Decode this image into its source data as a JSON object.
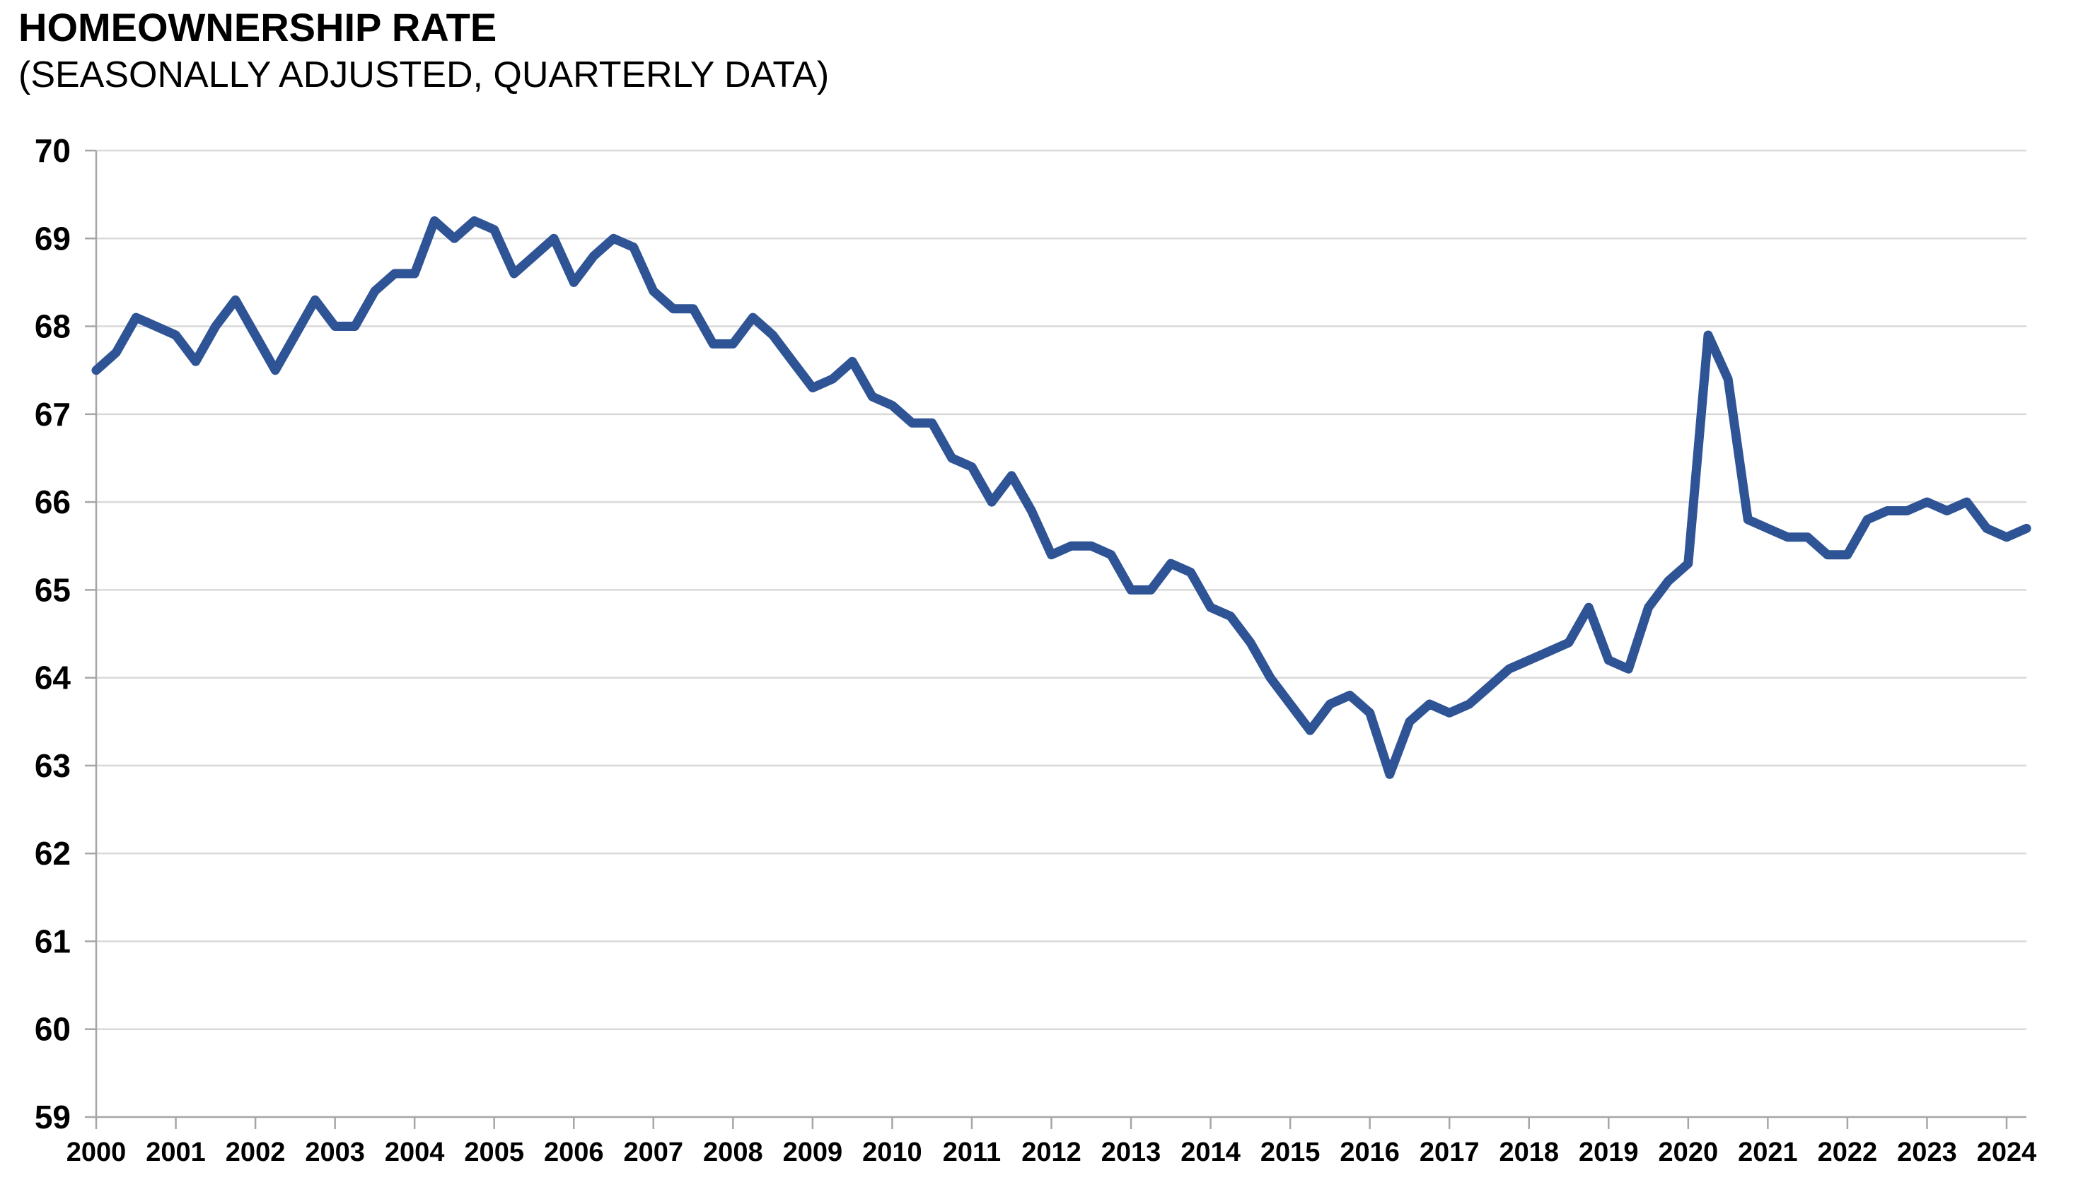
{
  "header": {
    "title": "HOMEOWNERSHIP RATE",
    "subtitle": "(SEASONALLY ADJUSTED, QUARTERLY DATA)"
  },
  "colors": {
    "line": "#2F5496",
    "gridline": "#D9D9D9",
    "axis": "#A6A6A6",
    "text": "#000000",
    "background": "#FFFFFF"
  },
  "chart_data": {
    "type": "line",
    "title": "HOMEOWNERSHIP RATE",
    "subtitle": "(SEASONALLY ADJUSTED, QUARTERLY DATA)",
    "unit": "percent",
    "frequency": "quarterly",
    "start_year": 2000,
    "start_quarter": 1,
    "end_year": 2024,
    "end_quarter": 2,
    "series": [
      {
        "name": "Homeownership rate (seasonally adjusted)",
        "values": [
          67.5,
          67.7,
          68.1,
          68.0,
          67.9,
          67.6,
          68.0,
          68.3,
          67.9,
          67.5,
          67.9,
          68.3,
          68.0,
          68.0,
          68.4,
          68.6,
          68.6,
          69.2,
          69.0,
          69.2,
          69.1,
          68.6,
          68.8,
          69.0,
          68.5,
          68.8,
          69.0,
          68.9,
          68.4,
          68.2,
          68.2,
          67.8,
          67.8,
          68.1,
          67.9,
          67.6,
          67.3,
          67.4,
          67.6,
          67.2,
          67.1,
          66.9,
          66.9,
          66.5,
          66.4,
          66.0,
          66.3,
          65.9,
          65.4,
          65.5,
          65.5,
          65.4,
          65.0,
          65.0,
          65.3,
          65.2,
          64.8,
          64.7,
          64.4,
          64.0,
          63.7,
          63.4,
          63.7,
          63.8,
          63.6,
          62.9,
          63.5,
          63.7,
          63.6,
          63.7,
          63.9,
          64.1,
          64.2,
          64.3,
          64.4,
          64.8,
          64.2,
          64.1,
          64.8,
          65.1,
          65.3,
          67.9,
          67.4,
          65.8,
          65.7,
          65.6,
          65.6,
          65.4,
          65.4,
          65.8,
          65.9,
          65.9,
          66.0,
          65.9,
          66.0,
          65.7,
          65.6,
          65.7
        ]
      }
    ],
    "xlabel": "",
    "ylabel": "",
    "ylim": [
      59,
      70
    ],
    "y_tick_step": 1,
    "y_tick_labels": [
      "59",
      "60",
      "61",
      "62",
      "63",
      "64",
      "65",
      "66",
      "67",
      "68",
      "69",
      "70"
    ],
    "x_tick_labels": [
      "2000",
      "2001",
      "2002",
      "2003",
      "2004",
      "2005",
      "2006",
      "2007",
      "2008",
      "2009",
      "2010",
      "2011",
      "2012",
      "2013",
      "2014",
      "2015",
      "2016",
      "2017",
      "2018",
      "2019",
      "2020",
      "2021",
      "2022",
      "2023",
      "2024"
    ],
    "grid": "horizontal",
    "legend": "none"
  }
}
